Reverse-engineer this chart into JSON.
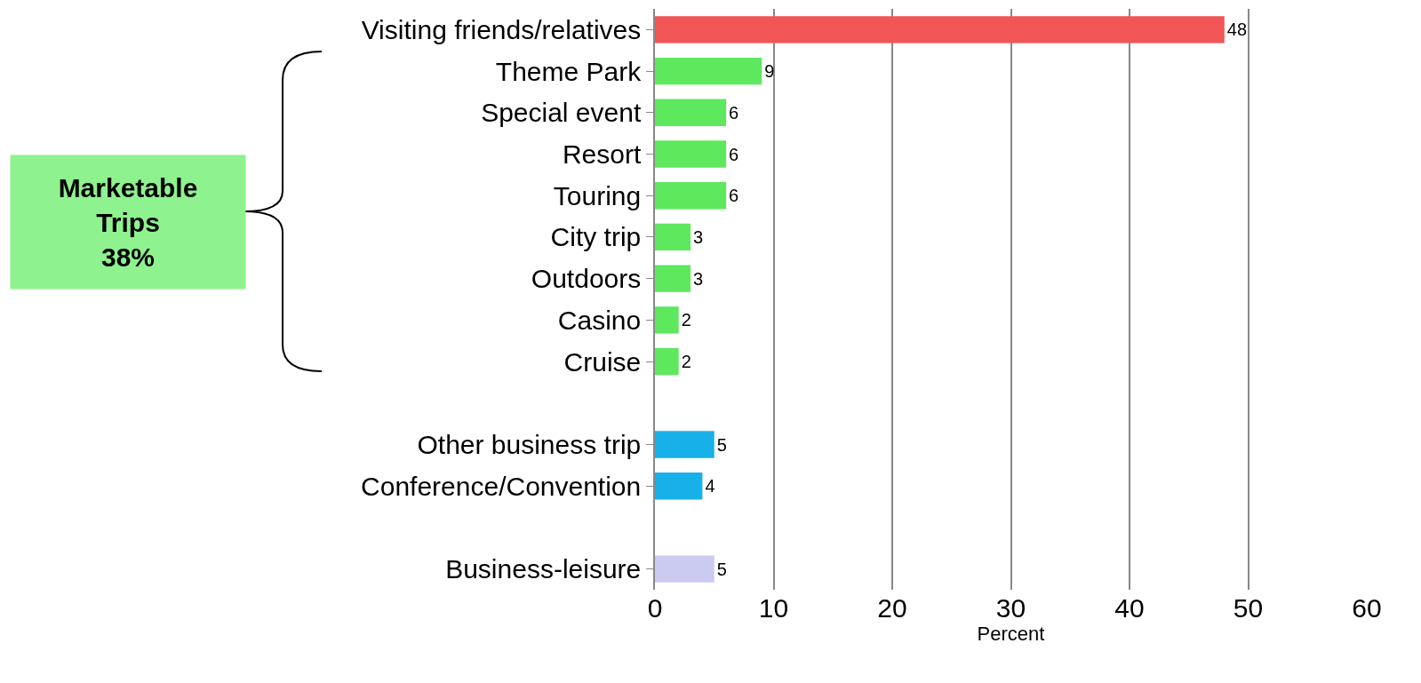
{
  "chart_data": {
    "type": "bar",
    "orientation": "horizontal",
    "xlabel": "Percent",
    "categories": [
      "Visiting friends/relatives",
      "Theme Park",
      "Special event",
      "Resort",
      "Touring",
      "City trip",
      "Outdoors",
      "Casino",
      "Cruise",
      null,
      "Other business trip",
      "Conference/Convention",
      null,
      "Business-leisure"
    ],
    "values": [
      48,
      9,
      6,
      6,
      6,
      3,
      3,
      2,
      2,
      null,
      5,
      4,
      null,
      5
    ],
    "colors": [
      "#f25555",
      "#5de85d",
      "#5de85d",
      "#5de85d",
      "#5de85d",
      "#5de85d",
      "#5de85d",
      "#5de85d",
      "#5de85d",
      null,
      "#18b0e8",
      "#18b0e8",
      null,
      "#cbcbf2"
    ],
    "data_labels": true,
    "xlim": [
      0,
      60
    ],
    "xticks": [
      0,
      10,
      20,
      30,
      40,
      50,
      60
    ],
    "grid": "x",
    "annotations": [
      "Marketable\nTrips\n38%"
    ]
  }
}
